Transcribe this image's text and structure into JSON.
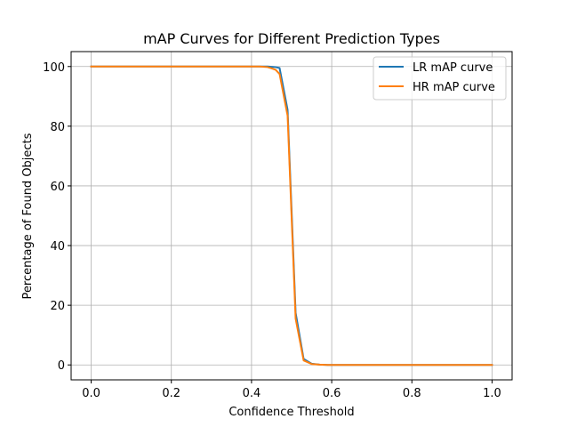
{
  "chart_data": {
    "type": "line",
    "title": "mAP Curves for Different Prediction Types",
    "xlabel": "Confidence Threshold",
    "ylabel": "Percentage of Found Objects",
    "xlim": [
      -0.05,
      1.05
    ],
    "ylim": [
      -5,
      105
    ],
    "xticks": [
      0.0,
      0.2,
      0.4,
      0.6,
      0.8,
      1.0
    ],
    "xtick_labels": [
      "0.0",
      "0.2",
      "0.4",
      "0.6",
      "0.8",
      "1.0"
    ],
    "yticks": [
      0,
      20,
      40,
      60,
      80,
      100
    ],
    "ytick_labels": [
      "0",
      "20",
      "40",
      "60",
      "80",
      "100"
    ],
    "grid": true,
    "legend_position": "top-right",
    "series": [
      {
        "name": "LR mAP curve",
        "color": "#1f77b4",
        "x": [
          0.0,
          0.02,
          0.04,
          0.06,
          0.08,
          0.1,
          0.12,
          0.14,
          0.16,
          0.18,
          0.2,
          0.22,
          0.24,
          0.26,
          0.28,
          0.3,
          0.32,
          0.34,
          0.36,
          0.38,
          0.4,
          0.42,
          0.44,
          0.45,
          0.46,
          0.47,
          0.49,
          0.51,
          0.53,
          0.55,
          0.57,
          0.59,
          0.6,
          0.7,
          0.8,
          0.9,
          1.0
        ],
        "y": [
          100,
          100,
          100,
          100,
          100,
          100,
          100,
          100,
          100,
          100,
          100,
          100,
          100,
          100,
          100,
          100,
          100,
          100,
          100,
          100,
          100,
          100,
          100,
          99.9,
          99.8,
          99.5,
          85.5,
          17.5,
          2.0,
          0.4,
          0.1,
          0,
          0,
          0,
          0,
          0,
          0
        ]
      },
      {
        "name": "HR mAP curve",
        "color": "#ff7f0e",
        "x": [
          0.0,
          0.02,
          0.04,
          0.06,
          0.08,
          0.1,
          0.12,
          0.14,
          0.16,
          0.18,
          0.2,
          0.22,
          0.24,
          0.26,
          0.28,
          0.3,
          0.32,
          0.34,
          0.36,
          0.38,
          0.4,
          0.42,
          0.44,
          0.45,
          0.46,
          0.47,
          0.49,
          0.51,
          0.53,
          0.55,
          0.57,
          0.59,
          0.6,
          0.7,
          0.8,
          0.9,
          1.0
        ],
        "y": [
          100,
          100,
          100,
          100,
          100,
          100,
          100,
          100,
          100,
          100,
          100,
          100,
          100,
          100,
          100,
          100,
          100,
          100,
          100,
          100,
          100,
          100,
          99.8,
          99.4,
          98.9,
          97.5,
          83.5,
          15.5,
          1.5,
          0.3,
          0.1,
          0,
          0,
          0,
          0,
          0,
          0
        ]
      }
    ]
  }
}
